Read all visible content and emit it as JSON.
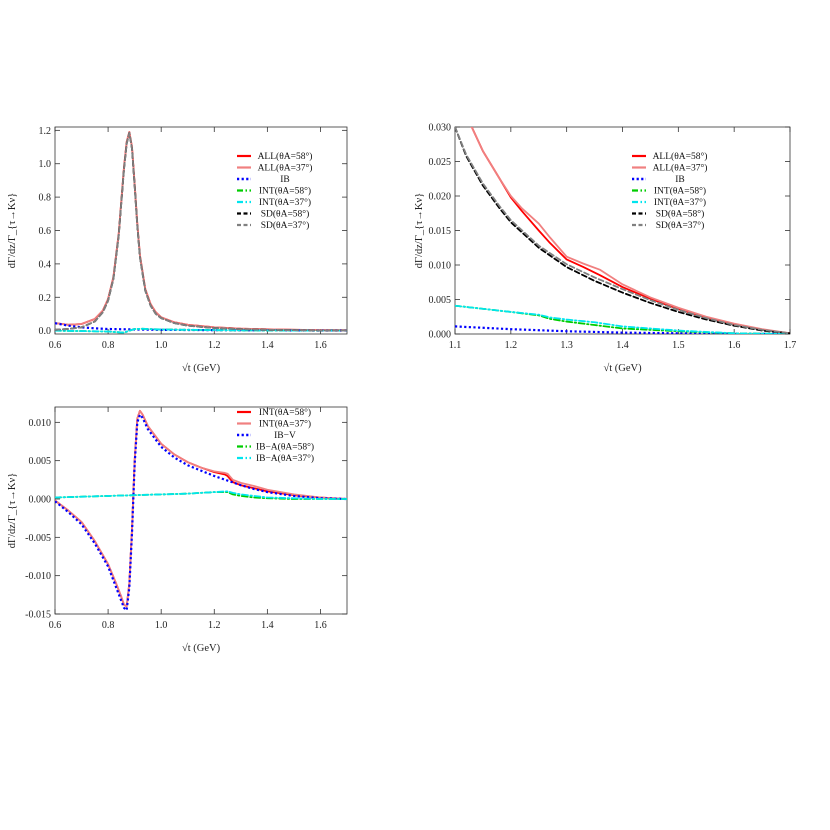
{
  "chart_data": [
    {
      "type": "line",
      "xlabel": "√t (GeV)",
      "ylabel": "dΓ/dz/Γ_{τ→Kν}",
      "xlim": [
        0.6,
        1.7
      ],
      "ylim": [
        -0.02,
        1.22
      ],
      "xticks": [
        "0.6",
        "0.8",
        "1.0",
        "1.2",
        "1.4",
        "1.6"
      ],
      "yticks": [
        "0.0",
        "0.2",
        "0.4",
        "0.6",
        "0.8",
        "1.0",
        "1.2"
      ],
      "legend_position": "top-right",
      "grid": false,
      "series": [
        {
          "name": "ALL(θA=58°)",
          "color": "#ff0000",
          "dash": "solid",
          "x": [
            0.6,
            0.65,
            0.7,
            0.75,
            0.78,
            0.8,
            0.82,
            0.84,
            0.85,
            0.86,
            0.87,
            0.88,
            0.89,
            0.9,
            0.91,
            0.92,
            0.94,
            0.96,
            0.98,
            1.0,
            1.05,
            1.1,
            1.2,
            1.3,
            1.4,
            1.5,
            1.6,
            1.7
          ],
          "y": [
            0.045,
            0.035,
            0.04,
            0.07,
            0.12,
            0.19,
            0.32,
            0.58,
            0.78,
            0.98,
            1.13,
            1.19,
            1.1,
            0.88,
            0.64,
            0.45,
            0.25,
            0.16,
            0.11,
            0.08,
            0.05,
            0.035,
            0.02,
            0.012,
            0.008,
            0.005,
            0.003,
            0.002
          ]
        },
        {
          "name": "ALL(θA=37°)",
          "color": "#f08080",
          "dash": "solid",
          "x": [
            0.6,
            0.65,
            0.7,
            0.75,
            0.78,
            0.8,
            0.82,
            0.84,
            0.85,
            0.86,
            0.87,
            0.88,
            0.89,
            0.9,
            0.91,
            0.92,
            0.94,
            0.96,
            0.98,
            1.0,
            1.05,
            1.1,
            1.2,
            1.3,
            1.4,
            1.5,
            1.6,
            1.7
          ],
          "y": [
            0.045,
            0.035,
            0.04,
            0.07,
            0.12,
            0.19,
            0.32,
            0.58,
            0.78,
            0.98,
            1.13,
            1.19,
            1.1,
            0.88,
            0.64,
            0.45,
            0.25,
            0.16,
            0.11,
            0.08,
            0.05,
            0.035,
            0.02,
            0.012,
            0.008,
            0.005,
            0.003,
            0.002
          ]
        },
        {
          "name": "IB",
          "color": "#0000ff",
          "dash": "dot",
          "x": [
            0.6,
            0.65,
            0.7,
            0.75,
            0.8,
            0.9,
            1.0,
            1.2,
            1.4,
            1.6,
            1.7
          ],
          "y": [
            0.045,
            0.03,
            0.02,
            0.014,
            0.01,
            0.007,
            0.005,
            0.003,
            0.002,
            0.001,
            0.001
          ]
        },
        {
          "name": "INT(θA=58°)",
          "color": "#00cc00",
          "dash": "dashdot",
          "x": [
            0.6,
            0.8,
            0.86,
            0.88,
            0.9,
            0.93,
            1.0,
            1.2,
            1.4,
            1.7
          ],
          "y": [
            0.0,
            -0.005,
            -0.012,
            0.0,
            0.01,
            0.011,
            0.007,
            0.003,
            0.001,
            0.0
          ]
        },
        {
          "name": "INT(θA=37°)",
          "color": "#00e5ee",
          "dash": "dashdot",
          "x": [
            0.6,
            0.8,
            0.86,
            0.88,
            0.9,
            0.93,
            1.0,
            1.2,
            1.4,
            1.7
          ],
          "y": [
            0.0,
            -0.005,
            -0.012,
            0.0,
            0.01,
            0.011,
            0.007,
            0.003,
            0.001,
            0.0
          ]
        },
        {
          "name": "SD(θA=58°)",
          "color": "#000000",
          "dash": "dash",
          "x": [
            0.6,
            0.65,
            0.7,
            0.75,
            0.78,
            0.8,
            0.82,
            0.84,
            0.85,
            0.86,
            0.87,
            0.88,
            0.89,
            0.9,
            0.91,
            0.92,
            0.94,
            0.96,
            0.98,
            1.0,
            1.05,
            1.1,
            1.2,
            1.3,
            1.4,
            1.5,
            1.6,
            1.7
          ],
          "y": [
            0.005,
            0.01,
            0.02,
            0.055,
            0.11,
            0.18,
            0.31,
            0.57,
            0.77,
            0.97,
            1.12,
            1.185,
            1.09,
            0.87,
            0.63,
            0.44,
            0.24,
            0.15,
            0.1,
            0.075,
            0.045,
            0.03,
            0.016,
            0.009,
            0.005,
            0.003,
            0.0015,
            0.0005
          ]
        },
        {
          "name": "SD(θA=37°)",
          "color": "#808080",
          "dash": "dash",
          "x": [
            0.6,
            0.65,
            0.7,
            0.75,
            0.78,
            0.8,
            0.82,
            0.84,
            0.85,
            0.86,
            0.87,
            0.88,
            0.89,
            0.9,
            0.91,
            0.92,
            0.94,
            0.96,
            0.98,
            1.0,
            1.05,
            1.1,
            1.2,
            1.3,
            1.4,
            1.5,
            1.6,
            1.7
          ],
          "y": [
            0.005,
            0.01,
            0.02,
            0.055,
            0.11,
            0.18,
            0.31,
            0.57,
            0.77,
            0.97,
            1.12,
            1.185,
            1.09,
            0.87,
            0.63,
            0.44,
            0.24,
            0.15,
            0.1,
            0.075,
            0.045,
            0.03,
            0.016,
            0.009,
            0.005,
            0.003,
            0.0015,
            0.0005
          ]
        }
      ]
    },
    {
      "type": "line",
      "xlabel": "√t (GeV)",
      "ylabel": "dΓ/dz/Γ_{τ→Kν}",
      "xlim": [
        1.1,
        1.7
      ],
      "ylim": [
        0.0,
        0.03
      ],
      "xticks": [
        "1.1",
        "1.2",
        "1.3",
        "1.4",
        "1.5",
        "1.6",
        "1.7"
      ],
      "yticks": [
        "0.000",
        "0.005",
        "0.010",
        "0.015",
        "0.020",
        "0.025",
        "0.030"
      ],
      "legend_position": "top-right",
      "grid": false,
      "series": [
        {
          "name": "ALL(θA=58°)",
          "color": "#ff0000",
          "dash": "solid",
          "x": [
            1.13,
            1.15,
            1.18,
            1.2,
            1.22,
            1.25,
            1.27,
            1.3,
            1.33,
            1.36,
            1.4,
            1.45,
            1.5,
            1.55,
            1.6,
            1.65,
            1.7
          ],
          "y": [
            0.03,
            0.0265,
            0.0225,
            0.0198,
            0.0178,
            0.015,
            0.0132,
            0.0108,
            0.0097,
            0.0085,
            0.0068,
            0.0051,
            0.0036,
            0.0024,
            0.0014,
            0.0006,
            0.0001
          ]
        },
        {
          "name": "ALL(θA=37°)",
          "color": "#f08080",
          "dash": "solid",
          "x": [
            1.13,
            1.15,
            1.18,
            1.2,
            1.22,
            1.25,
            1.27,
            1.3,
            1.33,
            1.36,
            1.4,
            1.45,
            1.5,
            1.55,
            1.6,
            1.65,
            1.7
          ],
          "y": [
            0.03,
            0.0265,
            0.0225,
            0.02,
            0.0182,
            0.016,
            0.014,
            0.0112,
            0.0102,
            0.0093,
            0.0072,
            0.0053,
            0.0038,
            0.0025,
            0.0015,
            0.0007,
            0.0001
          ]
        },
        {
          "name": "IB",
          "color": "#0000ff",
          "dash": "dot",
          "x": [
            1.1,
            1.2,
            1.3,
            1.4,
            1.5,
            1.6,
            1.7
          ],
          "y": [
            0.0011,
            0.0007,
            0.0004,
            0.0002,
            0.0001,
            5e-05,
            0.0
          ]
        },
        {
          "name": "INT(θA=58°)",
          "color": "#00cc00",
          "dash": "dashdot",
          "x": [
            1.1,
            1.2,
            1.25,
            1.27,
            1.3,
            1.35,
            1.4,
            1.5,
            1.6,
            1.7
          ],
          "y": [
            0.0041,
            0.0032,
            0.0027,
            0.0022,
            0.0018,
            0.0013,
            0.0008,
            0.0004,
            0.0001,
            0.0
          ]
        },
        {
          "name": "INT(θA=37°)",
          "color": "#00e5ee",
          "dash": "dashdot",
          "x": [
            1.1,
            1.2,
            1.25,
            1.27,
            1.3,
            1.35,
            1.4,
            1.5,
            1.6,
            1.7
          ],
          "y": [
            0.0041,
            0.0032,
            0.0028,
            0.0024,
            0.0021,
            0.0017,
            0.0011,
            0.0005,
            0.0001,
            0.0
          ]
        },
        {
          "name": "SD(θA=58°)",
          "color": "#000000",
          "dash": "dash",
          "x": [
            1.1,
            1.12,
            1.15,
            1.18,
            1.2,
            1.25,
            1.3,
            1.35,
            1.4,
            1.45,
            1.5,
            1.55,
            1.6,
            1.65,
            1.7
          ],
          "y": [
            0.03,
            0.0258,
            0.0215,
            0.0182,
            0.0162,
            0.0125,
            0.0097,
            0.0077,
            0.006,
            0.0045,
            0.0032,
            0.0021,
            0.0012,
            0.0005,
            0.0001
          ]
        },
        {
          "name": "SD(θA=37°)",
          "color": "#808080",
          "dash": "dash",
          "x": [
            1.1,
            1.12,
            1.15,
            1.18,
            1.2,
            1.25,
            1.3,
            1.35,
            1.4,
            1.45,
            1.5,
            1.55,
            1.6,
            1.65,
            1.7
          ],
          "y": [
            0.03,
            0.026,
            0.0218,
            0.0185,
            0.0165,
            0.0128,
            0.0101,
            0.0082,
            0.0065,
            0.0049,
            0.0035,
            0.0023,
            0.0013,
            0.0006,
            0.0001
          ]
        }
      ]
    },
    {
      "type": "line",
      "xlabel": "√t (GeV)",
      "ylabel": "dΓ/dz/Γ_{τ→Kν}",
      "xlim": [
        0.6,
        1.7
      ],
      "ylim": [
        -0.015,
        0.012
      ],
      "xticks": [
        "0.6",
        "0.8",
        "1.0",
        "1.2",
        "1.4",
        "1.6"
      ],
      "yticks": [
        "-0.015",
        "-0.010",
        "-0.005",
        "0.000",
        "0.005",
        "0.010"
      ],
      "legend_position": "top-right",
      "grid": false,
      "series": [
        {
          "name": "INT(θA=58°)",
          "color": "#ff0000",
          "dash": "solid",
          "x": [
            0.6,
            0.65,
            0.7,
            0.75,
            0.8,
            0.83,
            0.85,
            0.86,
            0.87,
            0.88,
            0.89,
            0.9,
            0.91,
            0.92,
            0.93,
            0.95,
            1.0,
            1.05,
            1.1,
            1.15,
            1.2,
            1.24,
            1.25,
            1.27,
            1.3,
            1.35,
            1.4,
            1.5,
            1.6,
            1.7
          ],
          "y": [
            -0.0002,
            -0.0015,
            -0.003,
            -0.0055,
            -0.0085,
            -0.011,
            -0.0128,
            -0.0138,
            -0.014,
            -0.011,
            -0.004,
            0.005,
            0.0105,
            0.0115,
            0.011,
            0.0095,
            0.0072,
            0.0058,
            0.0048,
            0.0041,
            0.0035,
            0.0032,
            0.003,
            0.0022,
            0.0018,
            0.0014,
            0.001,
            0.0005,
            0.0002,
            0.0
          ]
        },
        {
          "name": "INT(θA=37°)",
          "color": "#f08080",
          "dash": "solid",
          "x": [
            0.6,
            0.65,
            0.7,
            0.75,
            0.8,
            0.83,
            0.85,
            0.86,
            0.87,
            0.88,
            0.89,
            0.9,
            0.91,
            0.92,
            0.93,
            0.95,
            1.0,
            1.05,
            1.1,
            1.15,
            1.2,
            1.24,
            1.25,
            1.27,
            1.3,
            1.35,
            1.4,
            1.5,
            1.6,
            1.7
          ],
          "y": [
            -0.0002,
            -0.0015,
            -0.003,
            -0.0055,
            -0.0085,
            -0.011,
            -0.0128,
            -0.0138,
            -0.014,
            -0.011,
            -0.004,
            0.005,
            0.0105,
            0.0115,
            0.011,
            0.0095,
            0.0072,
            0.0058,
            0.0048,
            0.0041,
            0.0036,
            0.0034,
            0.0033,
            0.0025,
            0.0021,
            0.0017,
            0.0012,
            0.0006,
            0.0002,
            0.0
          ]
        },
        {
          "name": "IB−V",
          "color": "#0000ff",
          "dash": "dot",
          "x": [
            0.6,
            0.65,
            0.7,
            0.75,
            0.8,
            0.83,
            0.85,
            0.86,
            0.87,
            0.88,
            0.89,
            0.9,
            0.91,
            0.92,
            0.93,
            0.95,
            1.0,
            1.05,
            1.1,
            1.15,
            1.2,
            1.25,
            1.3,
            1.35,
            1.4,
            1.5,
            1.6,
            1.7
          ],
          "y": [
            -0.0003,
            -0.0017,
            -0.0033,
            -0.0058,
            -0.0088,
            -0.0115,
            -0.0133,
            -0.0142,
            -0.0145,
            -0.0115,
            -0.0045,
            0.0045,
            0.01,
            0.011,
            0.0106,
            0.0091,
            0.0068,
            0.0054,
            0.0044,
            0.0037,
            0.003,
            0.0024,
            0.0018,
            0.0013,
            0.0009,
            0.0004,
            0.0001,
            0.0
          ]
        },
        {
          "name": "IB−A(θA=58°)",
          "color": "#00cc00",
          "dash": "dashdot",
          "x": [
            0.6,
            0.8,
            1.0,
            1.1,
            1.2,
            1.25,
            1.27,
            1.3,
            1.35,
            1.4,
            1.5,
            1.6,
            1.7
          ],
          "y": [
            0.0002,
            0.0004,
            0.0006,
            0.0007,
            0.0009,
            0.0009,
            0.0006,
            0.0004,
            0.0002,
            0.0001,
            0.0,
            0.0,
            0.0
          ]
        },
        {
          "name": "IB−A(θA=37°)",
          "color": "#00e5ee",
          "dash": "dashdot",
          "x": [
            0.6,
            0.8,
            1.0,
            1.1,
            1.2,
            1.25,
            1.27,
            1.3,
            1.35,
            1.4,
            1.5,
            1.6,
            1.7
          ],
          "y": [
            0.0002,
            0.0004,
            0.0006,
            0.0007,
            0.0009,
            0.001,
            0.0008,
            0.0006,
            0.0004,
            0.0002,
            0.0001,
            0.0,
            0.0
          ]
        }
      ]
    }
  ]
}
